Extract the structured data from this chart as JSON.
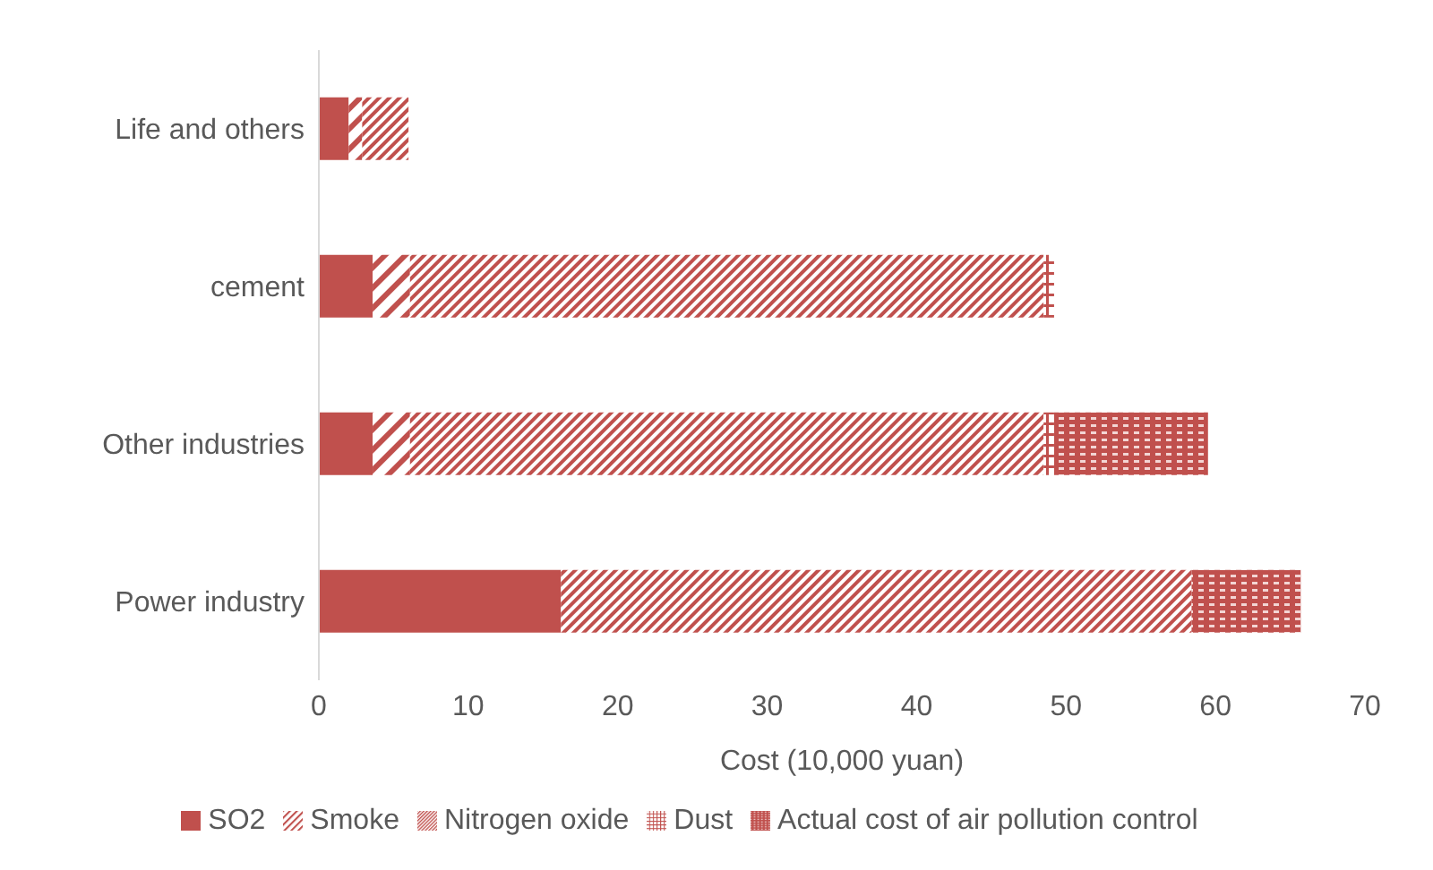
{
  "chart_data": {
    "type": "bar",
    "orientation": "horizontal",
    "stacked": true,
    "xlabel": "Cost (10,000 yuan)",
    "categories": [
      "Life and others",
      "cement",
      "Other industries",
      "Power industry"
    ],
    "series": [
      {
        "name": "SO2",
        "color": "#c0504d",
        "values": [
          2.0,
          3.6,
          3.6,
          16.2
        ]
      },
      {
        "name": "Smoke",
        "color": "#c0504d",
        "values": [
          0.9,
          2.5,
          2.5,
          0
        ]
      },
      {
        "name": "Nitrogen oxide",
        "color": "#c0504d",
        "values": [
          3.1,
          42.4,
          42.4,
          42.2
        ]
      },
      {
        "name": "Dust",
        "color": "#c0504d",
        "values": [
          0,
          0.7,
          0.7,
          0
        ]
      },
      {
        "name": "Actual cost of air pollution control",
        "color": "#c0504d",
        "values": [
          0,
          0,
          10.3,
          7.3
        ]
      }
    ],
    "xlim": [
      0,
      70
    ],
    "xticks": [
      0,
      10,
      20,
      30,
      40,
      50,
      60,
      70
    ],
    "legend": "bottom"
  }
}
